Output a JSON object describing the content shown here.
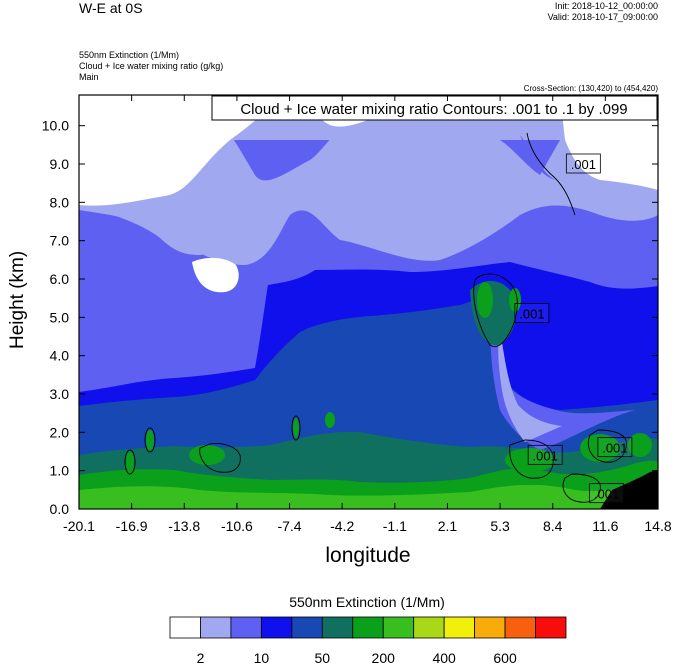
{
  "header": {
    "title": "W-E at 0S",
    "init": "Init: 2018-10-12_00:00:00",
    "valid": "Valid: 2018-10-17_09:00:00",
    "field1": "550nm Extinction   (1/Mm)",
    "field2": "Cloud + Ice water mixing ratio   (g/kg)",
    "field3": "Main",
    "cross_section": "Cross-Section: (130,420) to (454,420)"
  },
  "chart_data": {
    "type": "heatmap",
    "title": "W-E at 0S",
    "xlabel": "longitude",
    "ylabel": "Height (km)",
    "xlim": [
      -20.1,
      14.8
    ],
    "ylim": [
      0.0,
      10.8
    ],
    "x_ticks": [
      "-20.1",
      "-16.9",
      "-13.8",
      "-10.6",
      "-7.4",
      "-4.2",
      "-1.1",
      "2.1",
      "5.3",
      "8.4",
      "11.6",
      "14.8"
    ],
    "y_ticks": [
      {
        "value": 0.0,
        "label": "0.0"
      },
      {
        "value": 1.0,
        "label": "1.0"
      },
      {
        "value": 2.0,
        "label": "2.0"
      },
      {
        "value": 3.0,
        "label": "3.0"
      },
      {
        "value": 4.0,
        "label": "4.0"
      },
      {
        "value": 5.0,
        "label": "5.0"
      },
      {
        "value": 6.0,
        "label": "6.0"
      },
      {
        "value": 7.0,
        "label": "7.0"
      },
      {
        "value": 8.0,
        "label": "8.0"
      },
      {
        "value": 9.0,
        "label": "9.0"
      },
      {
        "value": 10.0,
        "label": "10.0"
      }
    ],
    "contour_title": "Cloud + Ice water mixing ratio Contours: .001 to .1 by .099",
    "contour_labels": [
      {
        "text": ".001",
        "lon": 10.3,
        "height": 9.0
      },
      {
        "text": ".001",
        "lon": 7.2,
        "height": 5.1
      },
      {
        "text": ".001",
        "lon": 8.0,
        "height": 1.4
      },
      {
        "text": ".001",
        "lon": 12.2,
        "height": 1.6
      },
      {
        "text": ".001",
        "lon": 11.7,
        "height": 0.4
      }
    ],
    "colorbar": {
      "title": "550nm Extinction  (1/Mm)",
      "colors": [
        "#ffffff",
        "#a0a8f0",
        "#5e60f2",
        "#1010ec",
        "#1848b4",
        "#0f7060",
        "#0aa01c",
        "#38be1e",
        "#a8d818",
        "#f0f00a",
        "#f8ac0a",
        "#f86010",
        "#f80c0c"
      ],
      "labels": [
        {
          "text": "2",
          "boundary": 1
        },
        {
          "text": "10",
          "boundary": 3
        },
        {
          "text": "50",
          "boundary": 5
        },
        {
          "text": "200",
          "boundary": 7
        },
        {
          "text": "400",
          "boundary": 9
        },
        {
          "text": "600",
          "boundary": 11
        }
      ]
    }
  }
}
